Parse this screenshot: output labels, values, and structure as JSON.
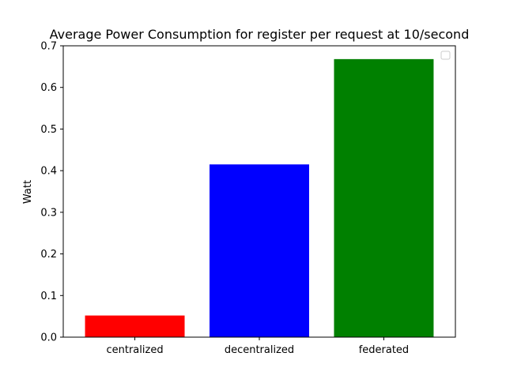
{
  "chart_data": {
    "type": "bar",
    "title": "Average Power Consumption for register per request at 10/second",
    "xlabel": "",
    "ylabel": "Watt",
    "categories": [
      "centralized",
      "decentralized",
      "federated"
    ],
    "values": [
      0.052,
      0.415,
      0.668
    ],
    "colors": [
      "#ff0000",
      "#0000ff",
      "#008000"
    ],
    "ylim": [
      0,
      0.7
    ],
    "yticks": [
      0.0,
      0.1,
      0.2,
      0.3,
      0.4,
      0.5,
      0.6,
      0.7
    ],
    "ytick_labels": [
      "0.0",
      "0.1",
      "0.2",
      "0.3",
      "0.4",
      "0.5",
      "0.6",
      "0.7"
    ],
    "grid": false,
    "legend": {
      "visible": true,
      "placement": "top-right",
      "entries": []
    }
  }
}
